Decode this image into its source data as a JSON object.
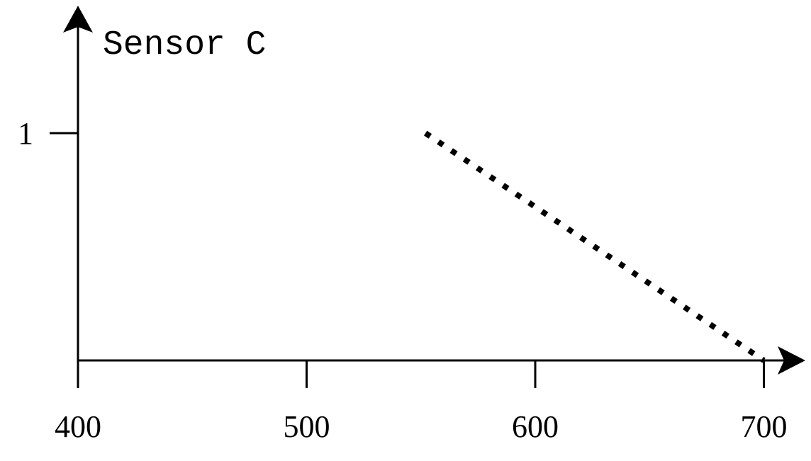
{
  "chart_data": {
    "type": "line",
    "title": "Sensor C",
    "xlabel": "",
    "ylabel": "",
    "xlim": [
      400,
      710
    ],
    "ylim": [
      0,
      1
    ],
    "x_ticks": [
      400,
      500,
      600,
      700
    ],
    "x_tick_labels": [
      "400",
      "500",
      "600",
      "700"
    ],
    "y_ticks": [
      1
    ],
    "y_tick_labels": [
      "1"
    ],
    "grid": false,
    "series": [
      {
        "style": "dotted",
        "color": "#000000",
        "points": [
          {
            "x": 552,
            "y": 1.0
          },
          {
            "x": 700,
            "y": 0.0
          }
        ]
      }
    ]
  }
}
